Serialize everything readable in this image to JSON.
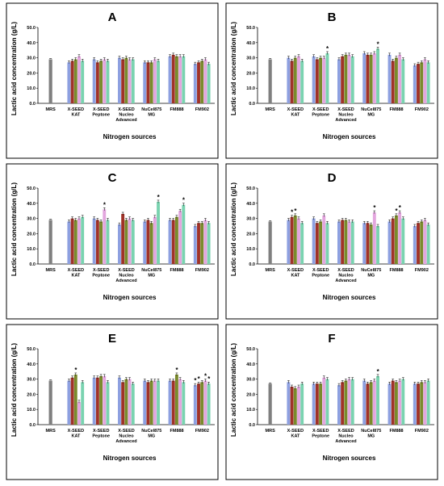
{
  "figure": {
    "panels": [
      "A",
      "B",
      "C",
      "D",
      "E",
      "F"
    ]
  },
  "colors": {
    "control": "#7f7f7f",
    "bars": [
      "#8da0e0",
      "#a03228",
      "#7a8a2c",
      "#e3a6de",
      "#7ad3b0",
      "#d8c85a"
    ]
  },
  "chart_data": [
    {
      "type": "bar",
      "title": "A",
      "ylabel": "Lactic acid concentration  (g/L)",
      "xlabel": "Nitrogen sources",
      "ylim": [
        0,
        50
      ],
      "yticks": [
        "0.0",
        "10.0",
        "20.0",
        "30.0",
        "40.0",
        "50.0"
      ],
      "categories": [
        "MRS",
        "X-SEED KAT",
        "X-SEED Peptone",
        "X-SEED Nucleo Advanced",
        "NuCel875 MG",
        "FM888",
        "FM902"
      ],
      "control": 29,
      "values": [
        [
          27,
          28,
          29,
          31,
          28
        ],
        [
          29,
          27,
          28,
          29,
          28
        ],
        [
          30,
          29,
          30,
          29,
          29
        ],
        [
          27,
          27,
          27,
          29,
          28
        ],
        [
          31,
          32,
          31,
          31,
          31
        ],
        [
          26,
          27,
          28,
          29,
          26
        ]
      ],
      "stars": [
        [],
        [],
        [],
        [],
        [],
        []
      ]
    },
    {
      "type": "bar",
      "title": "B",
      "ylabel": "Lactic acid concentration  (g/L)",
      "xlabel": "Nitrogen sources",
      "ylim": [
        0,
        50
      ],
      "yticks": [
        "0.0",
        "10.0",
        "20.0",
        "30.0",
        "40.0",
        "50.0"
      ],
      "categories": [
        "MRS",
        "X-SEED KAT",
        "X-SEED Peptone",
        "X-SEED Nucleo Advanced",
        "NuCel875 MG",
        "FM888",
        "FM902"
      ],
      "control": 29,
      "values": [
        [
          30,
          28,
          30,
          31,
          28
        ],
        [
          31,
          29,
          30,
          30,
          33
        ],
        [
          29,
          31,
          32,
          32,
          31
        ],
        [
          33,
          32,
          32,
          33,
          36
        ],
        [
          32,
          28,
          30,
          32,
          29
        ],
        [
          25,
          26,
          27,
          29,
          27
        ]
      ],
      "stars": [
        [],
        [
          4
        ],
        [],
        [
          4
        ],
        [],
        []
      ]
    },
    {
      "type": "bar",
      "title": "C",
      "ylabel": "Lactic acid concentration  (g/L)",
      "xlabel": "Nitrogen sources",
      "ylim": [
        0,
        50
      ],
      "yticks": [
        "0.0",
        "10.0",
        "20.0",
        "30.0",
        "40.0",
        "50.0"
      ],
      "categories": [
        "MRS",
        "X-SEED KAT",
        "X-SEED Peptone",
        "X-SEED Nucleo Advanced",
        "NuCel875 MG",
        "FM888",
        "FM902"
      ],
      "control": 29,
      "values": [
        [
          28,
          30,
          29,
          30,
          31
        ],
        [
          30,
          29,
          28,
          36,
          29
        ],
        [
          26,
          33,
          29,
          30,
          29
        ],
        [
          28,
          29,
          27,
          31,
          41
        ],
        [
          29,
          29,
          31,
          35,
          39
        ],
        [
          25,
          27,
          27,
          29,
          27
        ]
      ],
      "stars": [
        [],
        [
          3
        ],
        [],
        [
          4
        ],
        [
          4
        ],
        []
      ]
    },
    {
      "type": "bar",
      "title": "D",
      "ylabel": "Lactic acid concentration  (g/L)",
      "xlabel": "Nitrogen sources",
      "ylim": [
        0,
        50
      ],
      "yticks": [
        "0.0",
        "10.0",
        "20.0",
        "30.0",
        "40.0",
        "50.0"
      ],
      "categories": [
        "MRS",
        "X-SEED KAT",
        "X-SEED Peptone",
        "X-SEED Nucleo Advanced",
        "NuCel875 MG",
        "FM888",
        "FM902"
      ],
      "control": 28,
      "values": [
        [
          29,
          31,
          32,
          30,
          27
        ],
        [
          30,
          27,
          28,
          32,
          27
        ],
        [
          28,
          29,
          29,
          28,
          28
        ],
        [
          27,
          27,
          26,
          34,
          25
        ],
        [
          28,
          30,
          32,
          34,
          30
        ],
        [
          25,
          27,
          28,
          29,
          26
        ]
      ],
      "stars": [
        [
          1,
          2
        ],
        [],
        [],
        [
          3
        ],
        [
          2,
          3
        ],
        []
      ]
    },
    {
      "type": "bar",
      "title": "E",
      "ylabel": "Lactic acid concentration  (g/L)",
      "xlabel": "Nitrogen sources",
      "ylim": [
        0,
        50
      ],
      "yticks": [
        "0.0",
        "10.0",
        "20.0",
        "30.0",
        "40.0",
        "50.0"
      ],
      "categories": [
        "MRS",
        "X-SEED KAT",
        "X-SEED Peptone",
        "X-SEED Nucleo Advanced",
        "NuCel875 MG",
        "FM888",
        "FM902"
      ],
      "control": 29,
      "values": [
        [
          29,
          31,
          33,
          15,
          28
        ],
        [
          31,
          31,
          32,
          32,
          28
        ],
        [
          31,
          28,
          30,
          30,
          27
        ],
        [
          29,
          28,
          29,
          29,
          29
        ],
        [
          29,
          29,
          33,
          30,
          28
        ],
        [
          26,
          27,
          28,
          29,
          27
        ]
      ],
      "stars": [
        [
          2
        ],
        [],
        [],
        [],
        [
          2
        ],
        [
          0,
          1,
          3,
          4
        ]
      ]
    },
    {
      "type": "bar",
      "title": "F",
      "ylabel": "Lactic acid concentration  (g/L)",
      "xlabel": "Nitrogen sources",
      "ylim": [
        0,
        50
      ],
      "yticks": [
        "0.0",
        "10.0",
        "20.0",
        "30.0",
        "40.0",
        "50.0"
      ],
      "categories": [
        "MRS",
        "X-SEED KAT",
        "X-SEED Peptone",
        "X-SEED Nucleo Advanced",
        "NuCel875 MG",
        "FM888",
        "FM902"
      ],
      "control": 27,
      "values": [
        [
          28,
          25,
          24,
          25,
          27
        ],
        [
          27,
          27,
          27,
          31,
          30
        ],
        [
          26,
          28,
          29,
          30,
          30
        ],
        [
          29,
          27,
          28,
          29,
          32
        ],
        [
          27,
          29,
          28,
          29,
          30
        ],
        [
          27,
          27,
          28,
          28,
          29
        ]
      ],
      "stars": [
        [],
        [],
        [],
        [
          4
        ],
        [],
        []
      ]
    }
  ]
}
